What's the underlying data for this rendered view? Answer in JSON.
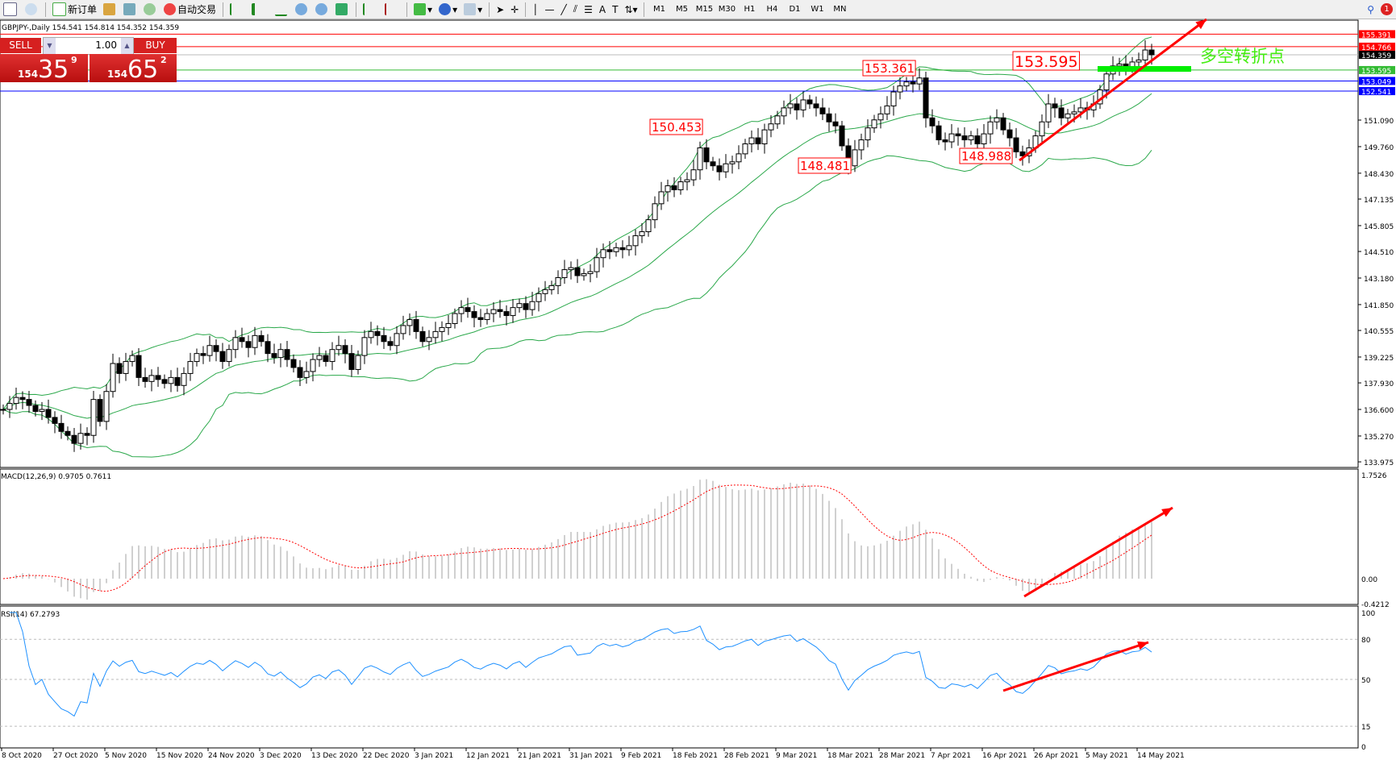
{
  "toolbar": {
    "new_order": "新订单",
    "auto_trading": "自动交易",
    "periods": [
      "M1",
      "M5",
      "M15",
      "M30",
      "H1",
      "H4",
      "D1",
      "W1",
      "MN"
    ],
    "notification_count": "1"
  },
  "chart_header": "GBPJPY-,Daily  154.541 154.814 154.352 154.359",
  "trade_panel": {
    "sell_label": "SELL",
    "buy_label": "BUY",
    "lot": "1.00",
    "sell_small": "154",
    "sell_big": "35",
    "sell_sup": "9",
    "buy_small": "154",
    "buy_big": "65",
    "buy_sup": "2"
  },
  "annotation_text": "多空转折点",
  "colors": {
    "up_candle": "#ffffff",
    "down_candle": "#000000",
    "bands": "#2aa84a",
    "macd_hist": "#c0c0c0",
    "macd_signal": "#ff0000",
    "rsi": "#1e90ff",
    "arrow": "#ff0000",
    "pivot_bar": "#00ee00"
  },
  "chart_data": [
    {
      "type": "candlestick",
      "symbol": "GBPJPY-",
      "timeframe": "Daily",
      "ylim": [
        133.975,
        155.391
      ],
      "y_ticks": [
        "151.090",
        "149.760",
        "148.430",
        "147.135",
        "145.805",
        "144.510",
        "143.180",
        "141.850",
        "140.555",
        "139.225",
        "137.930",
        "136.600",
        "135.270",
        "133.975"
      ],
      "x_ticks": [
        "8 Oct 2020",
        "27 Oct 2020",
        "5 Nov 2020",
        "15 Nov 2020",
        "24 Nov 2020",
        "3 Dec 2020",
        "13 Dec 2020",
        "22 Dec 2020",
        "3 Jan 2021",
        "12 Jan 2021",
        "21 Jan 2021",
        "31 Jan 2021",
        "9 Feb 2021",
        "18 Feb 2021",
        "28 Feb 2021",
        "9 Mar 2021",
        "18 Mar 2021",
        "28 Mar 2021",
        "7 Apr 2021",
        "16 Apr 2021",
        "26 Apr 2021",
        "5 May 2021",
        "14 May 2021"
      ],
      "close": [
        136.6,
        136.9,
        137.2,
        137.1,
        136.8,
        136.5,
        136.6,
        136.2,
        135.9,
        135.5,
        135.3,
        134.9,
        135.4,
        135.3,
        137.1,
        136.0,
        137.5,
        138.9,
        138.4,
        139.0,
        139.3,
        138.2,
        138.0,
        138.3,
        138.1,
        137.9,
        138.2,
        137.8,
        138.4,
        139.0,
        139.4,
        139.3,
        139.8,
        139.5,
        139.0,
        139.6,
        140.2,
        140.0,
        139.7,
        140.3,
        140.0,
        139.4,
        139.2,
        139.6,
        139.1,
        138.7,
        138.2,
        138.5,
        139.1,
        139.3,
        139.0,
        139.6,
        139.8,
        139.4,
        138.6,
        139.3,
        140.2,
        140.5,
        140.3,
        140.0,
        139.8,
        140.4,
        140.8,
        141.1,
        140.5,
        140.0,
        140.2,
        140.5,
        140.7,
        140.9,
        141.4,
        141.7,
        141.5,
        141.2,
        141.1,
        141.4,
        141.6,
        141.5,
        141.3,
        141.7,
        141.9,
        141.6,
        142.0,
        142.4,
        142.6,
        142.8,
        143.2,
        143.6,
        143.7,
        143.3,
        143.4,
        143.5,
        144.2,
        144.6,
        144.5,
        144.7,
        144.6,
        144.8,
        145.3,
        145.5,
        146.1,
        146.9,
        147.5,
        147.8,
        147.6,
        148.0,
        148.1,
        148.6,
        149.7,
        149.0,
        148.8,
        148.5,
        148.9,
        149.0,
        149.4,
        149.9,
        150.2,
        149.9,
        150.6,
        150.9,
        151.3,
        151.7,
        151.9,
        151.6,
        152.1,
        151.9,
        151.7,
        151.4,
        151.0,
        150.8,
        149.8,
        148.8,
        149.6,
        150.1,
        150.7,
        151.1,
        151.4,
        151.8,
        152.5,
        152.8,
        153.0,
        152.9,
        153.2,
        151.2,
        150.8,
        150.1,
        150.0,
        150.4,
        150.3,
        150.1,
        150.3,
        149.9,
        150.4,
        151.0,
        151.2,
        150.6,
        150.2,
        149.5,
        149.3,
        149.7,
        150.3,
        151.0,
        151.9,
        151.7,
        151.2,
        151.4,
        151.5,
        151.7,
        151.6,
        151.9,
        152.6,
        153.4,
        153.8,
        153.9,
        153.7,
        154.0,
        154.1,
        154.6,
        154.359
      ],
      "indicator": "Bollinger Bands",
      "levels": [
        {
          "value": "155.391",
          "color": "#ff0000"
        },
        {
          "value": "154.766",
          "color": "#ff0000"
        },
        {
          "value": "154.359",
          "color": "#000000"
        },
        {
          "value": "153.595",
          "color": "#33bb33"
        },
        {
          "value": "153.049",
          "color": "#0000ff"
        },
        {
          "value": "152.541",
          "color": "#0000ff"
        }
      ],
      "price_labels": [
        "150.453",
        "148.481",
        "153.361",
        "153.595",
        "148.988"
      ]
    },
    {
      "type": "macd",
      "label": "MACD(12,26,9) 0.9705 0.7611",
      "ylim": [
        -0.4212,
        1.7526
      ],
      "y_ticks": [
        "1.7526",
        "0.00",
        "-0.4212"
      ]
    },
    {
      "type": "line",
      "label": "RSI(14) 67.2793",
      "ylim": [
        0,
        100
      ],
      "y_ticks": [
        "100",
        "80",
        "50",
        "15",
        "0"
      ]
    }
  ]
}
